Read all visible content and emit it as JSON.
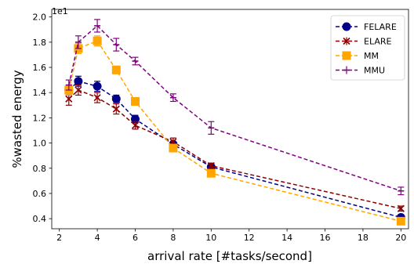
{
  "chart_data": {
    "type": "line",
    "xlabel": "arrival rate [#tasks/second]",
    "ylabel": "%wasted energy",
    "y_offset_label": "1e1",
    "xlim": [
      1.6,
      20.4
    ],
    "ylim": [
      3.2,
      20.6
    ],
    "x_ticks": [
      2,
      4,
      6,
      8,
      10,
      12,
      14,
      16,
      18,
      20
    ],
    "x_tick_labels": [
      "2",
      "4",
      "6",
      "8",
      "10",
      "12",
      "14",
      "16",
      "18",
      "20"
    ],
    "y_ticks": [
      4,
      6,
      8,
      10,
      12,
      14,
      16,
      18,
      20
    ],
    "y_tick_labels": [
      "0.4",
      "0.6",
      "0.8",
      "1.0",
      "1.2",
      "1.4",
      "1.6",
      "1.8",
      "2.0"
    ],
    "grid": false,
    "legend_position": "top-right",
    "x": [
      2.5,
      3,
      4,
      5,
      6,
      8,
      10,
      20
    ],
    "series": [
      {
        "name": "FELARE",
        "color": "#00008b",
        "marker": "circle",
        "values": [
          14.2,
          14.9,
          14.5,
          13.5,
          11.9,
          9.9,
          8.1,
          4.1
        ],
        "errors": [
          0.4,
          0.4,
          0.4,
          0.3,
          0.3,
          0.2,
          0.3,
          0.2
        ]
      },
      {
        "name": "ELARE",
        "color": "#8b0000",
        "marker": "x",
        "values": [
          13.5,
          14.2,
          13.6,
          12.7,
          11.4,
          10.1,
          8.2,
          4.8
        ],
        "errors": [
          0.5,
          0.4,
          0.4,
          0.4,
          0.3,
          0.3,
          0.2,
          0.2
        ]
      },
      {
        "name": "MM",
        "color": "#ffa500",
        "marker": "square",
        "values": [
          14.2,
          17.5,
          18.1,
          15.8,
          13.3,
          9.6,
          7.6,
          3.8
        ],
        "errors": [
          0.4,
          0.4,
          0.4,
          0.3,
          0.3,
          0.3,
          0.2,
          0.2
        ]
      },
      {
        "name": "MMU",
        "color": "#800080",
        "marker": "bar",
        "values": [
          14.6,
          18.0,
          19.3,
          17.8,
          16.5,
          13.6,
          11.2,
          6.2
        ],
        "errors": [
          0.4,
          0.5,
          0.5,
          0.5,
          0.3,
          0.3,
          0.5,
          0.3
        ]
      }
    ]
  }
}
